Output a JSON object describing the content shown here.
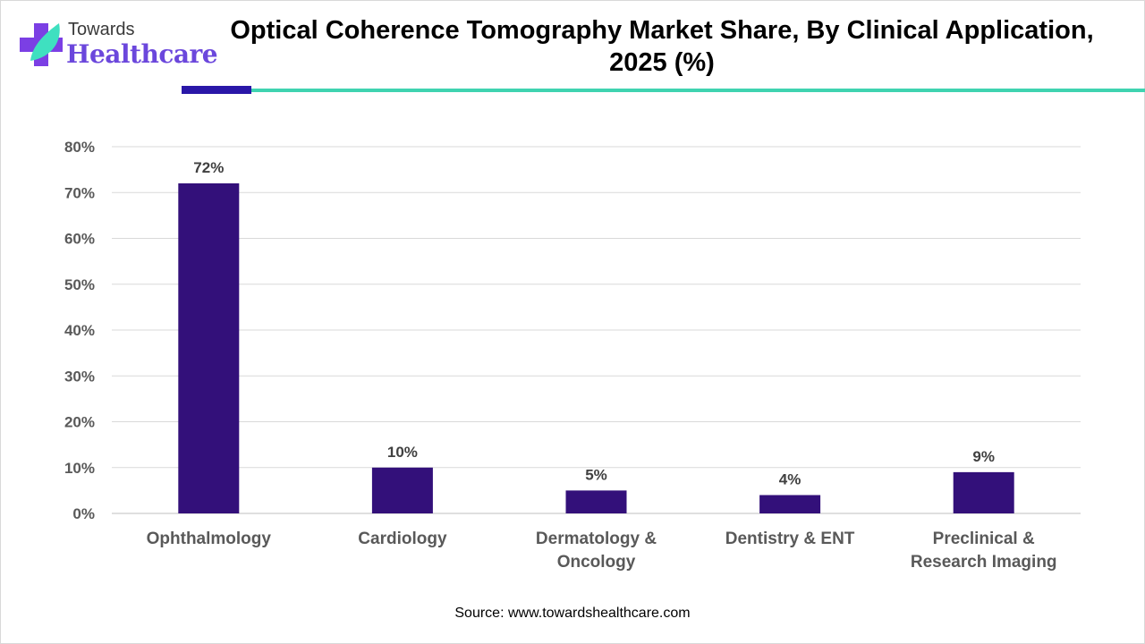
{
  "brand": {
    "line1": "Towards",
    "line2": "Healthcare",
    "colors": {
      "purple": "#6b47dc",
      "teal": "#3fd3b0"
    }
  },
  "chart_data": {
    "type": "bar",
    "title": "Optical Coherence Tomography Market Share, By Clinical Application, 2025 (%)",
    "categories": [
      [
        "Ophthalmology"
      ],
      [
        "Cardiology"
      ],
      [
        "Dermatology &",
        "Oncology"
      ],
      [
        "Dentistry & ENT"
      ],
      [
        "Preclinical &",
        "Research Imaging"
      ]
    ],
    "values": [
      72,
      10,
      5,
      4,
      9
    ],
    "data_labels": [
      "72%",
      "10%",
      "5%",
      "4%",
      "9%"
    ],
    "ylim": [
      0,
      80
    ],
    "yticks": [
      "0%",
      "10%",
      "20%",
      "30%",
      "40%",
      "50%",
      "60%",
      "70%",
      "80%"
    ],
    "grid": true,
    "bar_color": "#33107a",
    "xlabel": "",
    "ylabel": ""
  },
  "source": "Source: www.towardshealthcare.com"
}
